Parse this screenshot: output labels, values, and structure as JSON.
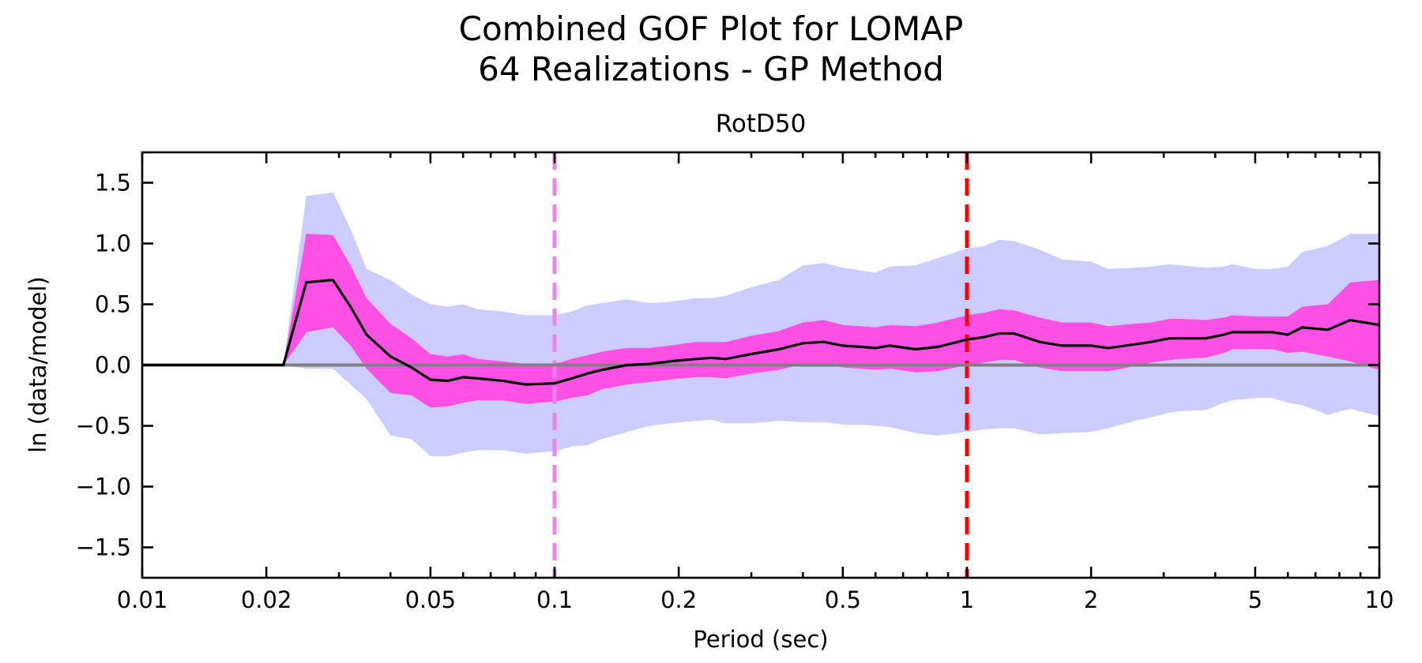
{
  "chart_data": {
    "type": "line",
    "suptitle": [
      "Combined GOF Plot for LOMAP",
      "64 Realizations - GP Method"
    ],
    "title": "RotD50",
    "xlabel": "Period (sec)",
    "ylabel": "ln (data/model)",
    "xscale": "log",
    "xlim": [
      0.01,
      10
    ],
    "ylim": [
      -1.75,
      1.75
    ],
    "xticks": [
      0.01,
      0.02,
      0.05,
      0.1,
      0.2,
      0.5,
      1,
      2,
      5,
      10
    ],
    "xtick_labels": [
      "0.01",
      "0.02",
      "0.05",
      "0.1",
      "0.2",
      "0.5",
      "1",
      "2",
      "5",
      "10"
    ],
    "yticks": [
      -1.5,
      -1.0,
      -0.5,
      0.0,
      0.5,
      1.0,
      1.5
    ],
    "ytick_labels": [
      "−1.5",
      "−1.0",
      "−0.5",
      "0.0",
      "0.5",
      "1.0",
      "1.5"
    ],
    "grid": false,
    "colors": {
      "outer_band": "#ccccff",
      "inner_band": "#ff50e6",
      "mean_line": "#000000",
      "zero_line": "#808080",
      "vline_low": "#ee82ee",
      "vline_high": "#ff0000"
    },
    "reference_lines": {
      "horizontal_zero": 0.0,
      "vertical_dashed": [
        {
          "x": 0.1,
          "color_key": "vline_low"
        },
        {
          "x": 1.0,
          "color_key": "vline_high"
        }
      ]
    },
    "x": [
      0.01,
      0.022,
      0.025,
      0.029,
      0.032,
      0.035,
      0.04,
      0.045,
      0.05,
      0.055,
      0.06,
      0.065,
      0.075,
      0.085,
      0.1,
      0.11,
      0.12,
      0.13,
      0.15,
      0.17,
      0.19,
      0.22,
      0.24,
      0.26,
      0.3,
      0.35,
      0.4,
      0.45,
      0.5,
      0.55,
      0.6,
      0.65,
      0.75,
      0.85,
      1.0,
      1.1,
      1.2,
      1.3,
      1.5,
      1.7,
      2.0,
      2.2,
      2.55,
      2.8,
      3.1,
      3.3,
      3.8,
      4.2,
      4.4,
      5.0,
      5.5,
      6.0,
      6.5,
      7.5,
      8.5,
      10.0
    ],
    "series": [
      {
        "name": "mean",
        "values": [
          0,
          0,
          0.68,
          0.7,
          0.48,
          0.25,
          0.07,
          -0.02,
          -0.12,
          -0.13,
          -0.1,
          -0.11,
          -0.13,
          -0.16,
          -0.15,
          -0.11,
          -0.07,
          -0.04,
          0.0,
          0.01,
          0.03,
          0.05,
          0.06,
          0.05,
          0.09,
          0.13,
          0.18,
          0.19,
          0.16,
          0.15,
          0.14,
          0.16,
          0.13,
          0.15,
          0.21,
          0.23,
          0.26,
          0.26,
          0.19,
          0.16,
          0.16,
          0.14,
          0.17,
          0.19,
          0.22,
          0.22,
          0.22,
          0.25,
          0.27,
          0.27,
          0.27,
          0.25,
          0.31,
          0.29,
          0.37,
          0.33
        ]
      },
      {
        "name": "inner_lower",
        "values": [
          0,
          0,
          0.27,
          0.31,
          0.16,
          -0.03,
          -0.23,
          -0.25,
          -0.35,
          -0.34,
          -0.31,
          -0.29,
          -0.29,
          -0.32,
          -0.3,
          -0.27,
          -0.25,
          -0.2,
          -0.16,
          -0.14,
          -0.12,
          -0.1,
          -0.1,
          -0.11,
          -0.07,
          -0.04,
          0.01,
          0.01,
          -0.02,
          -0.03,
          -0.04,
          -0.03,
          -0.06,
          -0.05,
          0.0,
          0.02,
          0.04,
          0.04,
          -0.02,
          -0.05,
          -0.05,
          -0.05,
          -0.01,
          0.02,
          0.04,
          0.05,
          0.06,
          0.1,
          0.13,
          0.13,
          0.13,
          0.1,
          0.11,
          0.07,
          0.03,
          -0.04
        ]
      },
      {
        "name": "inner_upper",
        "values": [
          0,
          0,
          1.08,
          1.07,
          0.82,
          0.55,
          0.34,
          0.22,
          0.09,
          0.07,
          0.09,
          0.05,
          0.03,
          0.01,
          0.01,
          0.05,
          0.08,
          0.11,
          0.14,
          0.14,
          0.16,
          0.19,
          0.19,
          0.19,
          0.24,
          0.28,
          0.35,
          0.37,
          0.33,
          0.32,
          0.31,
          0.33,
          0.32,
          0.35,
          0.41,
          0.43,
          0.46,
          0.45,
          0.39,
          0.35,
          0.35,
          0.32,
          0.34,
          0.35,
          0.38,
          0.38,
          0.37,
          0.39,
          0.41,
          0.4,
          0.4,
          0.4,
          0.48,
          0.5,
          0.68,
          0.7
        ]
      },
      {
        "name": "outer_lower",
        "values": [
          0,
          0,
          -0.03,
          -0.03,
          -0.16,
          -0.28,
          -0.58,
          -0.61,
          -0.75,
          -0.75,
          -0.72,
          -0.7,
          -0.7,
          -0.73,
          -0.71,
          -0.67,
          -0.66,
          -0.61,
          -0.55,
          -0.5,
          -0.48,
          -0.46,
          -0.45,
          -0.48,
          -0.48,
          -0.46,
          -0.47,
          -0.47,
          -0.49,
          -0.49,
          -0.5,
          -0.51,
          -0.56,
          -0.58,
          -0.55,
          -0.53,
          -0.52,
          -0.52,
          -0.57,
          -0.56,
          -0.55,
          -0.52,
          -0.46,
          -0.43,
          -0.39,
          -0.38,
          -0.37,
          -0.31,
          -0.29,
          -0.27,
          -0.27,
          -0.31,
          -0.33,
          -0.41,
          -0.36,
          -0.42
        ]
      },
      {
        "name": "outer_upper",
        "values": [
          0,
          0,
          1.39,
          1.42,
          1.12,
          0.79,
          0.7,
          0.58,
          0.5,
          0.48,
          0.5,
          0.46,
          0.44,
          0.41,
          0.41,
          0.44,
          0.49,
          0.51,
          0.54,
          0.51,
          0.52,
          0.55,
          0.55,
          0.57,
          0.64,
          0.7,
          0.82,
          0.84,
          0.8,
          0.78,
          0.76,
          0.81,
          0.82,
          0.88,
          0.96,
          0.98,
          1.03,
          1.02,
          0.95,
          0.87,
          0.85,
          0.79,
          0.8,
          0.81,
          0.83,
          0.82,
          0.8,
          0.81,
          0.83,
          0.79,
          0.79,
          0.81,
          0.93,
          0.98,
          1.08,
          1.08
        ]
      }
    ]
  }
}
